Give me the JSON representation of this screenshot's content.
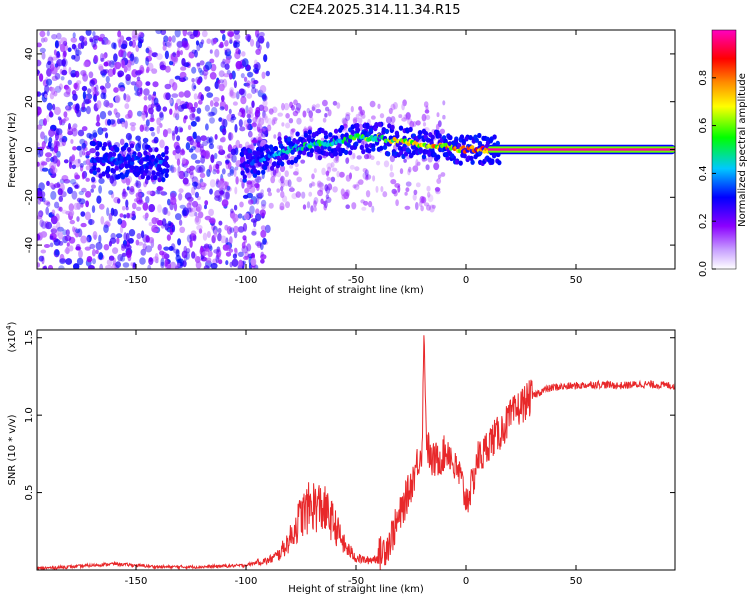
{
  "title": "C2E4.2025.314.11.34.R15",
  "chart_data": [
    {
      "type": "heatmap",
      "xlabel": "Height of straight line (km)",
      "ylabel": "Frequency (Hz)",
      "xlim": [
        -195,
        95
      ],
      "ylim": [
        -50,
        50
      ],
      "xticks": [
        -150,
        -100,
        -50,
        0,
        50
      ],
      "xtick_labels": [
        "-150",
        "-100",
        "-50",
        "0",
        "50"
      ],
      "yticks": [
        -40,
        -20,
        0,
        20,
        40
      ],
      "ytick_labels": [
        "-40",
        "-20",
        "0",
        "20",
        "40"
      ],
      "colorbar": {
        "label": "Normalized spectral amplitude",
        "range": [
          0,
          1
        ],
        "ticks": [
          0.0,
          0.2,
          0.4,
          0.6,
          0.8
        ],
        "tick_labels": [
          "0.0",
          "0.2",
          "0.4",
          "0.6",
          "0.8"
        ],
        "colormap": [
          "#ffffff",
          "#8b00ff",
          "#0000ff",
          "#00c8ff",
          "#00ff00",
          "#ffff00",
          "#ff8c00",
          "#ff0000",
          "#ff00c0"
        ]
      },
      "ridge": {
        "description": "spectral ridge frequency (Hz) vs height (km)",
        "x": [
          -168,
          -160,
          -150,
          -140,
          -100,
          -90,
          -80,
          -70,
          -60,
          -50,
          -40,
          -30,
          -20,
          -10,
          0,
          10,
          20,
          50,
          95
        ],
        "freq": [
          -4,
          -5,
          -4,
          -6,
          -6,
          -3,
          0,
          2,
          3,
          5,
          5,
          3,
          2,
          1,
          0,
          0,
          0,
          0,
          0
        ],
        "peak_amplitude": [
          0.3,
          0.35,
          0.3,
          0.35,
          0.3,
          0.4,
          0.45,
          0.5,
          0.55,
          0.6,
          0.65,
          0.75,
          0.8,
          0.85,
          0.9,
          0.95,
          1.0,
          1.0,
          1.0
        ]
      }
    },
    {
      "type": "line",
      "xlabel": "Height of straight line (km)",
      "ylabel": "SNR (10 * v/v)",
      "scale_label": "(x10",
      "scale_exponent": "4",
      "scale_suffix": ")",
      "xlim": [
        -195,
        95
      ],
      "ylim": [
        0,
        1.55
      ],
      "xticks": [
        -150,
        -100,
        -50,
        0,
        50
      ],
      "xtick_labels": [
        "-150",
        "-100",
        "-50",
        "0",
        "50"
      ],
      "yticks": [
        0.5,
        1.0,
        1.5
      ],
      "ytick_labels": [
        "0.5",
        "1.0",
        "1.5"
      ],
      "color": "#e8282a",
      "series": [
        {
          "name": "SNR",
          "x": [
            -195,
            -180,
            -170,
            -160,
            -150,
            -140,
            -120,
            -100,
            -95,
            -90,
            -85,
            -80,
            -75,
            -70,
            -65,
            -60,
            -55,
            -50,
            -45,
            -40,
            -35,
            -30,
            -25,
            -22,
            -20,
            -19,
            -18,
            -16,
            -12,
            -8,
            -5,
            -3,
            0,
            3,
            5,
            8,
            10,
            15,
            20,
            25,
            30,
            35,
            40,
            50,
            60,
            70,
            80,
            95
          ],
          "y": [
            0.01,
            0.02,
            0.03,
            0.04,
            0.03,
            0.02,
            0.02,
            0.03,
            0.05,
            0.06,
            0.1,
            0.2,
            0.35,
            0.42,
            0.4,
            0.3,
            0.15,
            0.08,
            0.06,
            0.08,
            0.18,
            0.35,
            0.55,
            0.7,
            0.78,
            1.55,
            0.85,
            0.7,
            0.72,
            0.78,
            0.65,
            0.62,
            0.45,
            0.55,
            0.72,
            0.75,
            0.82,
            0.88,
            0.98,
            1.06,
            1.12,
            1.16,
            1.18,
            1.19,
            1.2,
            1.19,
            1.2,
            1.19
          ]
        }
      ]
    }
  ]
}
